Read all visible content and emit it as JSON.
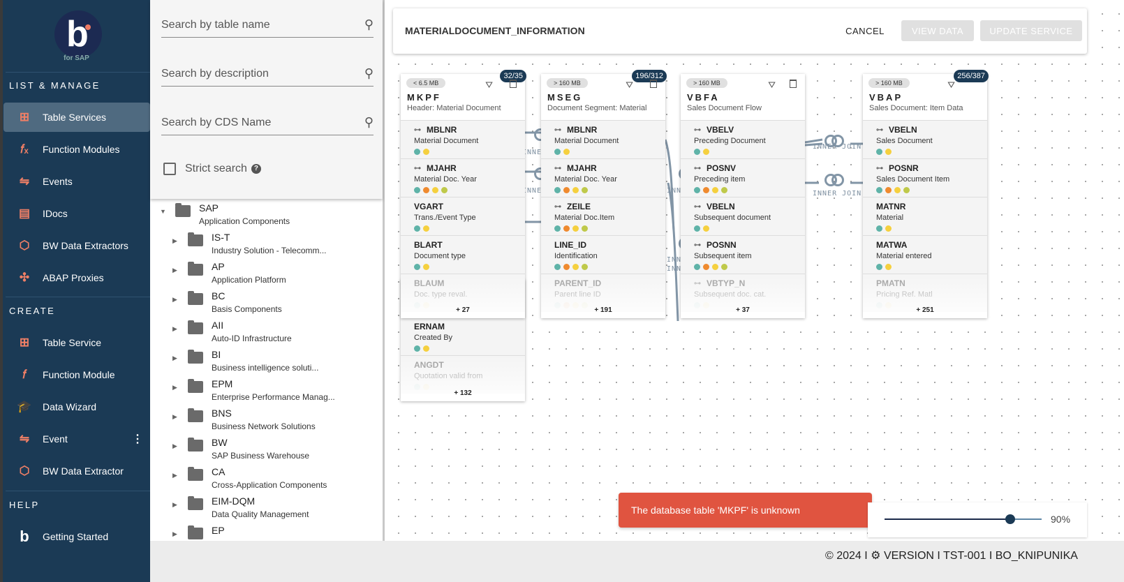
{
  "app": {
    "logo_text": "b",
    "logo_sub": "for SAP"
  },
  "sidebar": {
    "sections": [
      {
        "title": "LIST & MANAGE",
        "items": [
          {
            "label": "Table Services",
            "icon": "table-icon",
            "glyph": "⊞",
            "active": true
          },
          {
            "label": "Function Modules",
            "icon": "function-icon",
            "glyph": "𝑓ₓ"
          },
          {
            "label": "Events",
            "icon": "event-flow-icon",
            "glyph": "⇋"
          },
          {
            "label": "IDocs",
            "icon": "document-icon",
            "glyph": "▤"
          },
          {
            "label": "BW Data Extractors",
            "icon": "extractor-cube-icon",
            "glyph": "⬡"
          },
          {
            "label": "ABAP Proxies",
            "icon": "proxy-arrows-icon",
            "glyph": "✣"
          }
        ]
      },
      {
        "title": "CREATE",
        "items": [
          {
            "label": "Table Service",
            "icon": "table-network-icon",
            "glyph": "⊞"
          },
          {
            "label": "Function Module",
            "icon": "function-icon",
            "glyph": "𝑓"
          },
          {
            "label": "Data Wizard",
            "icon": "graduation-cap-icon",
            "glyph": "🎓"
          },
          {
            "label": "Event",
            "icon": "event-flow-icon",
            "glyph": "⇋",
            "kebab": true
          },
          {
            "label": "BW Data Extractor",
            "icon": "extractor-cube-icon",
            "glyph": "⬡"
          }
        ]
      },
      {
        "title": "HELP",
        "items": [
          {
            "label": "Getting Started",
            "icon": "b-logo-icon",
            "glyph": "b"
          }
        ]
      }
    ]
  },
  "search": {
    "table_name_placeholder": "Search by table name",
    "description_placeholder": "Search by description",
    "cds_placeholder": "Search by CDS Name",
    "strict_label": "Strict search",
    "strict_checked": false
  },
  "tree": {
    "root": {
      "code": "SAP",
      "desc": "Application Components",
      "expanded": true
    },
    "children": [
      {
        "code": "IS-T",
        "desc": "Industry Solution - Telecomm..."
      },
      {
        "code": "AP",
        "desc": "Application Platform"
      },
      {
        "code": "BC",
        "desc": "Basis Components"
      },
      {
        "code": "AII",
        "desc": "Auto-ID Infrastructure"
      },
      {
        "code": "BI",
        "desc": "Business intelligence soluti..."
      },
      {
        "code": "EPM",
        "desc": "Enterprise Performance Manag..."
      },
      {
        "code": "BNS",
        "desc": "Business Network Solutions"
      },
      {
        "code": "BW",
        "desc": "SAP Business Warehouse"
      },
      {
        "code": "CA",
        "desc": "Cross-Application Components"
      },
      {
        "code": "EIM-DQM",
        "desc": "Data Quality Management"
      },
      {
        "code": "EP",
        "desc": ""
      }
    ]
  },
  "header": {
    "title": "MATERIALDOCUMENT_INFORMATION",
    "cancel": "CANCEL",
    "view_data": "VIEW DATA",
    "update_service": "UPDATE SERVICE"
  },
  "colors": {
    "teal": "#5fb3a8",
    "orange": "#ef8a2f",
    "yellow": "#f5d03f",
    "lime": "#bfc94a",
    "sidebar": "#1b3a55",
    "accent": "#ef7f66",
    "toast": "#e05440"
  },
  "tables": [
    {
      "name": "MKPF",
      "desc": "Header: Material Document",
      "size": "< 6.5 MB",
      "count": "32/35",
      "more": "+ 27",
      "fields": [
        {
          "name": "MBLNR",
          "desc": "Material Document",
          "key": true,
          "dots": [
            "teal",
            "yellow"
          ]
        },
        {
          "name": "MJAHR",
          "desc": "Material Doc. Year",
          "key": true,
          "dots": [
            "teal",
            "orange",
            "yellow",
            "lime"
          ]
        },
        {
          "name": "VGART",
          "desc": "Trans./Event Type",
          "key": false,
          "dots": [
            "teal",
            "yellow"
          ]
        },
        {
          "name": "BLART",
          "desc": "Document type",
          "key": false,
          "dots": [
            "teal",
            "yellow"
          ]
        },
        {
          "name": "BLAUM",
          "desc": "Doc. type reval.",
          "key": false,
          "dots": [
            "teal",
            "yellow"
          ]
        }
      ]
    },
    {
      "name": "MSEG",
      "desc": "Document Segment: Material",
      "size": "> 160 MB",
      "count": "196/312",
      "more": "+ 191",
      "fields": [
        {
          "name": "MBLNR",
          "desc": "Material Document",
          "key": true,
          "dots": [
            "teal",
            "yellow"
          ]
        },
        {
          "name": "MJAHR",
          "desc": "Material Doc. Year",
          "key": true,
          "dots": [
            "teal",
            "orange",
            "yellow",
            "lime"
          ]
        },
        {
          "name": "ZEILE",
          "desc": "Material Doc.Item",
          "key": true,
          "dots": [
            "teal",
            "orange",
            "yellow",
            "lime"
          ]
        },
        {
          "name": "LINE_ID",
          "desc": "Identification",
          "key": false,
          "dots": [
            "teal",
            "orange",
            "yellow",
            "lime"
          ]
        },
        {
          "name": "PARENT_ID",
          "desc": "Parent line ID",
          "key": false,
          "dots": [
            "teal",
            "orange",
            "yellow",
            "lime"
          ]
        }
      ]
    },
    {
      "name": "VBFA",
      "desc": "Sales Document Flow",
      "size": "> 160 MB",
      "count": "",
      "more": "+ 37",
      "fields": [
        {
          "name": "VBELV",
          "desc": "Preceding Document",
          "key": true,
          "dots": [
            "teal",
            "yellow"
          ]
        },
        {
          "name": "POSNV",
          "desc": "Preceding item",
          "key": true,
          "dots": [
            "teal",
            "orange",
            "yellow",
            "lime"
          ]
        },
        {
          "name": "VBELN",
          "desc": "Subsequent document",
          "key": true,
          "dots": [
            "teal",
            "yellow"
          ]
        },
        {
          "name": "POSNN",
          "desc": "Subsequent item",
          "key": true,
          "dots": [
            "teal",
            "orange",
            "yellow",
            "lime"
          ]
        },
        {
          "name": "VBTYP_N",
          "desc": "Subsequent doc. cat.",
          "key": true,
          "dots": [
            "teal",
            "yellow"
          ]
        }
      ]
    },
    {
      "name": "VBAP",
      "desc": "Sales Document: Item Data",
      "size": "> 160 MB",
      "count": "256/387",
      "more": "+ 251",
      "fields": [
        {
          "name": "VBELN",
          "desc": "Sales Document",
          "key": true,
          "dots": [
            "teal",
            "yellow"
          ]
        },
        {
          "name": "POSNR",
          "desc": "Sales Document Item",
          "key": true,
          "dots": [
            "teal",
            "orange",
            "yellow",
            "lime"
          ]
        },
        {
          "name": "MATNR",
          "desc": "Material",
          "key": false,
          "dots": [
            "teal",
            "yellow"
          ]
        },
        {
          "name": "MATWA",
          "desc": "Material entered",
          "key": false,
          "dots": [
            "teal",
            "yellow"
          ]
        },
        {
          "name": "PMATN",
          "desc": "Pricing Ref. Matl",
          "key": false,
          "dots": [
            "teal",
            "yellow"
          ]
        }
      ]
    }
  ],
  "back_table": {
    "more": "+ 132",
    "fields": [
      {
        "name": "ERNAM",
        "desc": "Created By",
        "key": false,
        "dots": [
          "teal",
          "yellow"
        ]
      },
      {
        "name": "ANGDT",
        "desc": "Quotation valid from",
        "key": false,
        "dots": [
          "teal",
          "yellow"
        ]
      }
    ]
  },
  "joins": {
    "label": "INNER JOIN"
  },
  "toast": {
    "message": "The database table 'MKPF' is unknown"
  },
  "zoom": {
    "value": "90%",
    "percent": 90
  },
  "footer": {
    "text": "© 2024  I ⚙ VERSION I TST-001 I BO_KNIPUNIKA"
  }
}
